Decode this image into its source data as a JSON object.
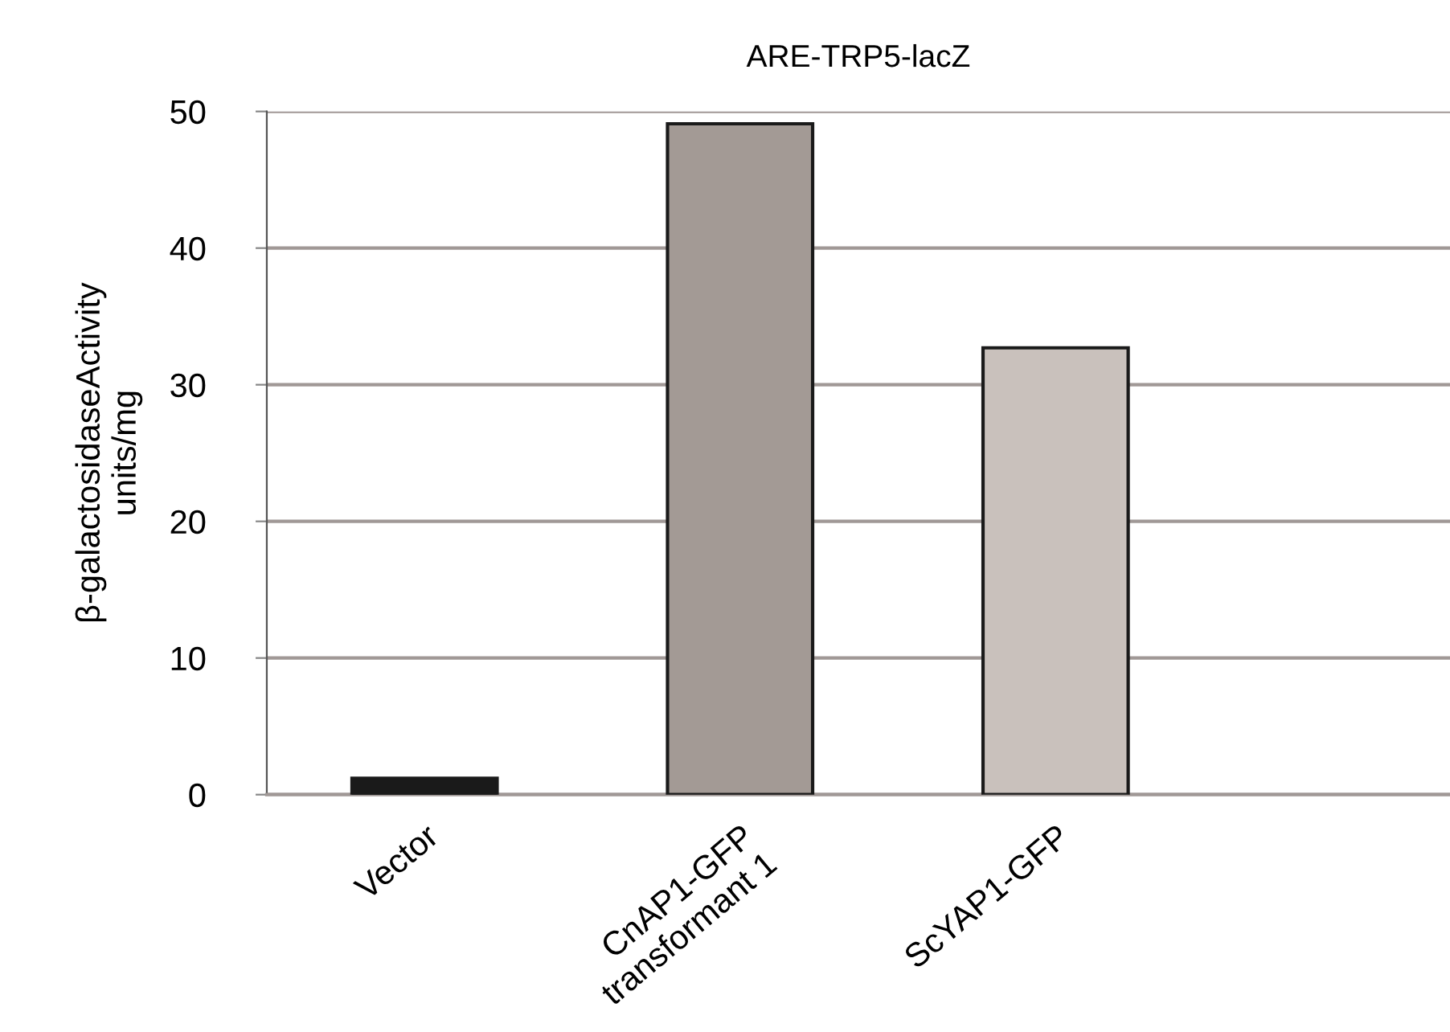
{
  "chart_data": {
    "type": "bar",
    "title": "ARE-TRP5-lacZ",
    "ylabel": "β-galactosidaseActivity\nunits/mg",
    "categories": [
      "Vector",
      "CnAP1-GFP\ntransformant 1",
      "ScYAP1-GFP"
    ],
    "values": [
      1.2,
      49.1,
      32.7
    ],
    "colors": [
      "#1a1a1a",
      "#a39a95",
      "#c9c1bc"
    ],
    "ylim": [
      0,
      50
    ],
    "yticks": [
      0,
      10,
      20,
      30,
      40,
      50
    ],
    "grid": "y"
  }
}
